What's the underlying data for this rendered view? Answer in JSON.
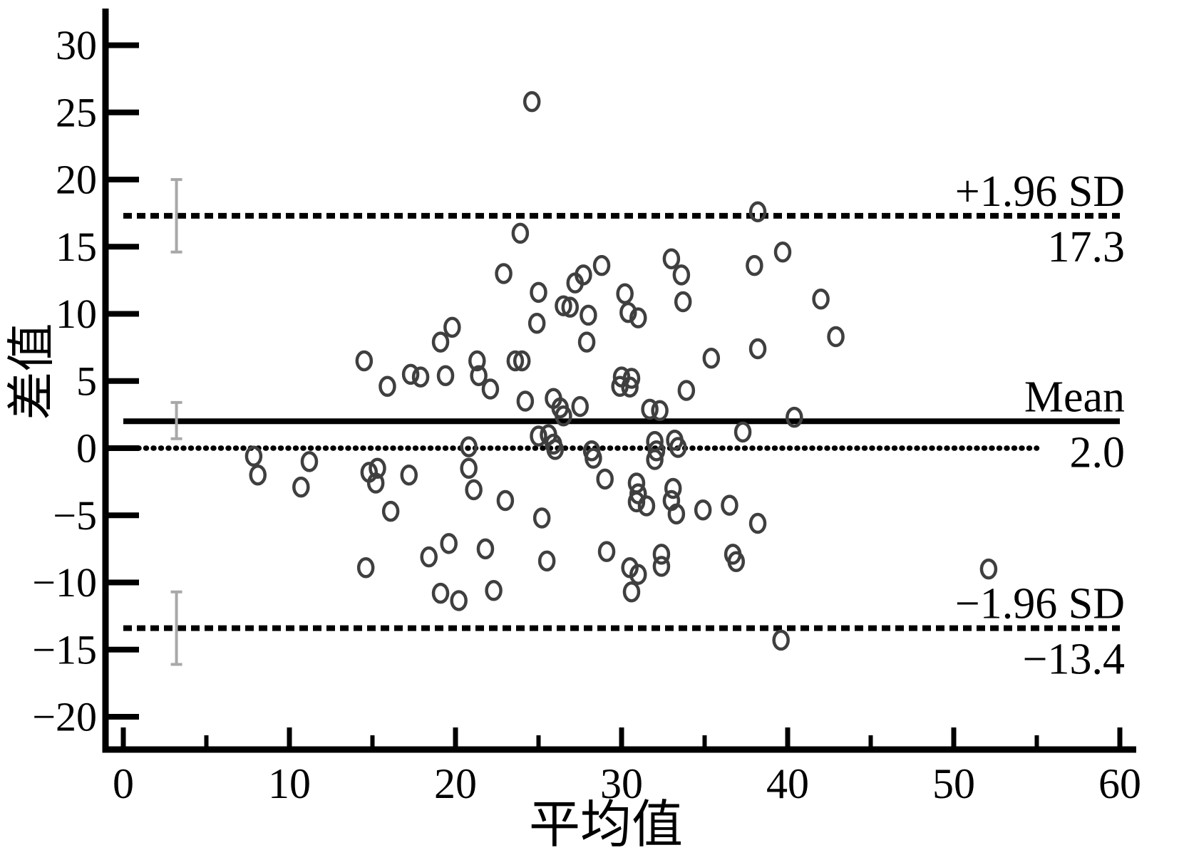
{
  "chart_data": {
    "type": "scatter",
    "title": "",
    "xlabel": "平均值",
    "ylabel": "差值",
    "xlim": [
      -0.5,
      61
    ],
    "ylim": [
      -22.5,
      32.5
    ],
    "grid": false,
    "x_ticks_major": [
      0,
      10,
      20,
      30,
      40,
      50,
      60
    ],
    "x_ticks_minor": [
      5,
      15,
      25,
      35,
      45,
      55
    ],
    "y_ticks": [
      30,
      25,
      20,
      15,
      10,
      5,
      0,
      -5,
      -10,
      -15,
      -20
    ],
    "reference_lines": [
      {
        "id": "upper-loa",
        "label": "+1.96 SD",
        "value_label": "17.3",
        "y": 17.3,
        "style": "dashed",
        "x_start": 0,
        "x_end": 60
      },
      {
        "id": "mean",
        "label": "Mean",
        "value_label": "2.0",
        "y": 2.0,
        "style": "solid",
        "x_start": 0,
        "x_end": 60
      },
      {
        "id": "zero",
        "label": "",
        "value_label": "",
        "y": 0,
        "style": "dotted",
        "x_start": 0,
        "x_end": 55
      },
      {
        "id": "lower-loa",
        "label": "−1.96 SD",
        "value_label": "−13.4",
        "y": -13.4,
        "style": "dashed",
        "x_start": 0,
        "x_end": 60
      }
    ],
    "error_bars": [
      {
        "x": 3.2,
        "y_low": 14.6,
        "y_high": 20.0
      },
      {
        "x": 3.2,
        "y_low": 0.7,
        "y_high": 3.4
      },
      {
        "x": 3.2,
        "y_low": -16.1,
        "y_high": -10.7
      }
    ],
    "points": [
      [
        24.6,
        25.8
      ],
      [
        38.2,
        17.6
      ],
      [
        23.9,
        16.0
      ],
      [
        39.7,
        14.6
      ],
      [
        38.0,
        13.6
      ],
      [
        33.0,
        14.1
      ],
      [
        22.9,
        13.0
      ],
      [
        27.2,
        12.3
      ],
      [
        27.7,
        12.9
      ],
      [
        28.8,
        13.6
      ],
      [
        33.6,
        12.9
      ],
      [
        25.0,
        11.6
      ],
      [
        26.5,
        10.6
      ],
      [
        26.9,
        10.5
      ],
      [
        28.0,
        9.9
      ],
      [
        30.2,
        11.5
      ],
      [
        30.4,
        10.1
      ],
      [
        31.0,
        9.7
      ],
      [
        33.7,
        10.9
      ],
      [
        42.0,
        11.1
      ],
      [
        42.9,
        8.3
      ],
      [
        24.9,
        9.3
      ],
      [
        19.8,
        9.0
      ],
      [
        19.1,
        7.9
      ],
      [
        14.5,
        6.5
      ],
      [
        38.2,
        7.4
      ],
      [
        35.4,
        6.7
      ],
      [
        40.4,
        2.3
      ],
      [
        37.3,
        1.2
      ],
      [
        15.9,
        4.6
      ],
      [
        17.3,
        5.5
      ],
      [
        17.9,
        5.3
      ],
      [
        19.4,
        5.4
      ],
      [
        21.3,
        6.5
      ],
      [
        21.4,
        5.4
      ],
      [
        22.1,
        4.4
      ],
      [
        23.6,
        6.5
      ],
      [
        24.0,
        6.5
      ],
      [
        24.2,
        3.5
      ],
      [
        25.9,
        3.7
      ],
      [
        26.3,
        3.0
      ],
      [
        26.5,
        2.4
      ],
      [
        27.5,
        3.1
      ],
      [
        27.9,
        7.9
      ],
      [
        29.9,
        4.6
      ],
      [
        30.5,
        4.55
      ],
      [
        30.0,
        5.3
      ],
      [
        30.6,
        5.2
      ],
      [
        31.7,
        2.9
      ],
      [
        32.3,
        2.8
      ],
      [
        33.9,
        4.3
      ],
      [
        25.0,
        0.9
      ],
      [
        25.6,
        1.0
      ],
      [
        25.9,
        0.3
      ],
      [
        26.0,
        -0.1
      ],
      [
        20.8,
        0.1
      ],
      [
        28.2,
        -0.2
      ],
      [
        28.3,
        -0.75
      ],
      [
        32.0,
        0.5
      ],
      [
        32.1,
        -0.2
      ],
      [
        32.0,
        -0.85
      ],
      [
        33.2,
        0.6
      ],
      [
        33.4,
        0.05
      ],
      [
        7.85,
        -0.6
      ],
      [
        8.1,
        -2.0
      ],
      [
        11.2,
        -1.0
      ],
      [
        10.7,
        -2.9
      ],
      [
        14.8,
        -1.8
      ],
      [
        15.3,
        -1.5
      ],
      [
        15.2,
        -2.6
      ],
      [
        17.2,
        -2.0
      ],
      [
        16.1,
        -4.7
      ],
      [
        20.8,
        -1.5
      ],
      [
        21.1,
        -3.1
      ],
      [
        23.0,
        -3.9
      ],
      [
        29.0,
        -2.3
      ],
      [
        30.9,
        -2.6
      ],
      [
        31.0,
        -3.4
      ],
      [
        30.9,
        -4.0
      ],
      [
        31.5,
        -4.3
      ],
      [
        33.1,
        -3.0
      ],
      [
        33.0,
        -3.9
      ],
      [
        33.3,
        -4.9
      ],
      [
        34.9,
        -4.6
      ],
      [
        36.5,
        -4.25
      ],
      [
        38.2,
        -5.6
      ],
      [
        25.2,
        -5.2
      ],
      [
        21.8,
        -7.5
      ],
      [
        22.3,
        -10.6
      ],
      [
        25.5,
        -8.4
      ],
      [
        29.1,
        -7.7
      ],
      [
        32.4,
        -7.9
      ],
      [
        32.4,
        -8.8
      ],
      [
        30.5,
        -8.9
      ],
      [
        31.0,
        -9.4
      ],
      [
        30.6,
        -10.7
      ],
      [
        36.7,
        -7.9
      ],
      [
        36.9,
        -8.45
      ],
      [
        14.6,
        -8.9
      ],
      [
        19.6,
        -7.1
      ],
      [
        18.4,
        -8.1
      ],
      [
        19.1,
        -10.8
      ],
      [
        20.2,
        -11.35
      ],
      [
        52.1,
        -9.0
      ],
      [
        39.6,
        -14.3
      ]
    ],
    "colors": {
      "axis": "#000000",
      "reference_line": "#000000",
      "point_stroke": "#3f3f3f",
      "error_bar": "#a8a8a8",
      "background": "#ffffff"
    }
  }
}
